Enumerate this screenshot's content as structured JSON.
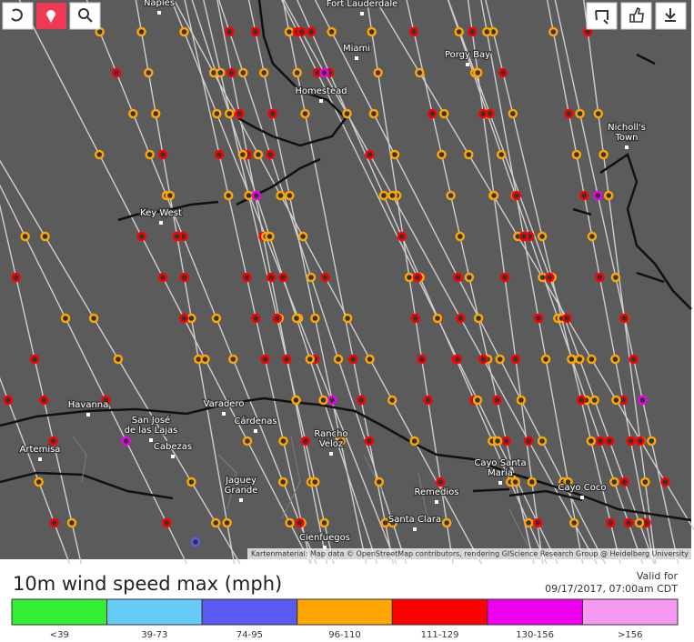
{
  "places": [
    {
      "lines": [
        "Naples"
      ]
    },
    {
      "lines": [
        "Fort Lauderdale"
      ]
    },
    {
      "lines": [
        "Miami"
      ]
    },
    {
      "lines": [
        "Porgy Bay"
      ]
    },
    {
      "lines": [
        "Homestead"
      ]
    },
    {
      "lines": [
        "Nicholl's",
        "Town"
      ]
    },
    {
      "lines": [
        "Key West"
      ]
    },
    {
      "lines": [
        "Havanna"
      ]
    },
    {
      "lines": [
        "Varadero"
      ]
    },
    {
      "lines": [
        "San José",
        "de las Lajas"
      ]
    },
    {
      "lines": [
        "Cárdenas"
      ]
    },
    {
      "lines": [
        "Artemisa"
      ]
    },
    {
      "lines": [
        "Cabezas"
      ]
    },
    {
      "lines": [
        "Rancho",
        "Veloz"
      ]
    },
    {
      "lines": [
        "Jaguey",
        "Grande"
      ]
    },
    {
      "lines": [
        "Cayo Santa",
        "María"
      ]
    },
    {
      "lines": [
        "Remedios"
      ]
    },
    {
      "lines": [
        "Santa Clara"
      ]
    },
    {
      "lines": [
        "Cayo Coco"
      ]
    },
    {
      "lines": [
        "Cienfuegos"
      ]
    }
  ],
  "attribution": "Kartenmaterial: Map data © OpenStreetMap contributors, rendering GIScience Research Group @ Heidelberg University",
  "legend": {
    "title": "10m wind speed max (mph)",
    "valid_label": "Valid for",
    "valid_time": "09/17/2017, 07:00am CDT",
    "bins": [
      {
        "label": "<39",
        "color": "#33ee33"
      },
      {
        "label": "39-73",
        "color": "#66ccf5"
      },
      {
        "label": "74-95",
        "color": "#5a5af0"
      },
      {
        "label": "96-110",
        "color": "#ffa500"
      },
      {
        "label": "111-129",
        "color": "#ff0000"
      },
      {
        "label": "130-156",
        "color": "#ee00ee"
      },
      {
        "label": ">156",
        "color": "#f59af0"
      }
    ]
  }
}
